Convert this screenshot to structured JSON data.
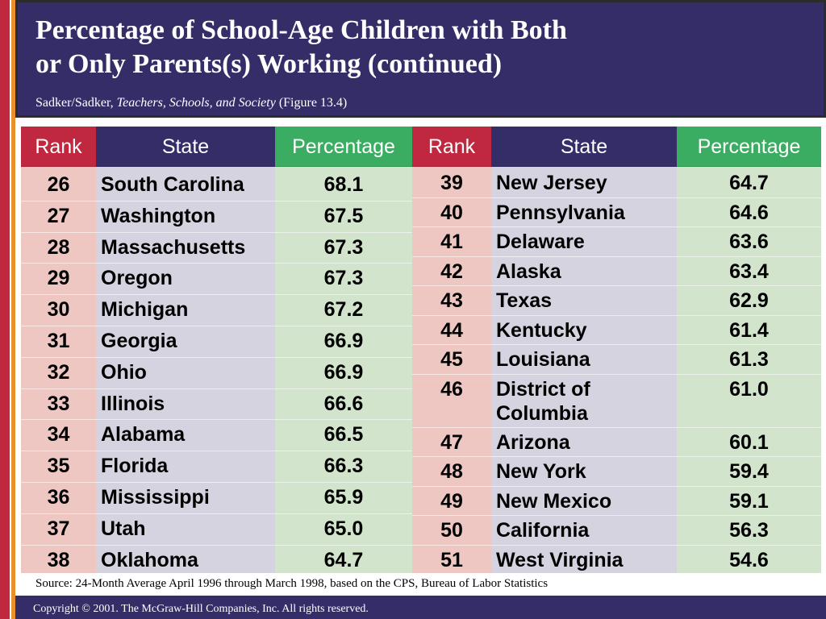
{
  "header": {
    "title_line1": "Percentage of School-Age Children with Both",
    "title_line2": "or Only Parents(s) Working (continued)",
    "citation_prefix": "Sadker/Sadker,",
    "citation_book": "Teachers, Schools, and Society",
    "citation_figure": "(Figure 13.4)"
  },
  "table": {
    "columns": [
      "Rank",
      "State",
      "Percentage"
    ],
    "left_rows": [
      {
        "rank": "26",
        "state": "South Carolina",
        "pct": "68.1"
      },
      {
        "rank": "27",
        "state": "Washington",
        "pct": "67.5"
      },
      {
        "rank": "28",
        "state": "Massachusetts",
        "pct": "67.3"
      },
      {
        "rank": "29",
        "state": "Oregon",
        "pct": "67.3"
      },
      {
        "rank": "30",
        "state": "Michigan",
        "pct": "67.2"
      },
      {
        "rank": "31",
        "state": "Georgia",
        "pct": "66.9"
      },
      {
        "rank": "32",
        "state": "Ohio",
        "pct": "66.9"
      },
      {
        "rank": "33",
        "state": "Illinois",
        "pct": "66.6"
      },
      {
        "rank": "34",
        "state": "Alabama",
        "pct": "66.5"
      },
      {
        "rank": "35",
        "state": "Florida",
        "pct": "66.3"
      },
      {
        "rank": "36",
        "state": "Mississippi",
        "pct": "65.9"
      },
      {
        "rank": "37",
        "state": "Utah",
        "pct": "65.0"
      },
      {
        "rank": "38",
        "state": "Oklahoma",
        "pct": "64.7"
      }
    ],
    "right_rows": [
      {
        "rank": "39",
        "state": "New Jersey",
        "pct": "64.7"
      },
      {
        "rank": "40",
        "state": "Pennsylvania",
        "pct": "64.6"
      },
      {
        "rank": "41",
        "state": "Delaware",
        "pct": "63.6"
      },
      {
        "rank": "42",
        "state": "Alaska",
        "pct": "63.4"
      },
      {
        "rank": "43",
        "state": "Texas",
        "pct": "62.9"
      },
      {
        "rank": "44",
        "state": "Kentucky",
        "pct": "61.4"
      },
      {
        "rank": "45",
        "state": "Louisiana",
        "pct": "61.3"
      },
      {
        "rank": "46",
        "state": "District of Columbia",
        "pct": "61.0"
      },
      {
        "rank": "47",
        "state": "Arizona",
        "pct": "60.1"
      },
      {
        "rank": "48",
        "state": "New York",
        "pct": "59.4"
      },
      {
        "rank": "49",
        "state": "New Mexico",
        "pct": "59.1"
      },
      {
        "rank": "50",
        "state": "California",
        "pct": "56.3"
      },
      {
        "rank": "51",
        "state": "West Virginia",
        "pct": "54.6"
      }
    ]
  },
  "source": "Source: 24-Month Average April 1996 through March 1998, based on the CPS, Bureau of Labor Statistics",
  "footer": {
    "copyright": "Copyright © 2001. The McGraw-Hill Companies, Inc. All rights reserved."
  },
  "colors": {
    "header_bg": "#342d68",
    "rank_header": "#c0283f",
    "state_header": "#342d68",
    "pct_header": "#3bad62",
    "rank_cell": "#efc7c2",
    "state_cell": "#d6d3e1",
    "pct_cell": "#d2e5cc"
  }
}
